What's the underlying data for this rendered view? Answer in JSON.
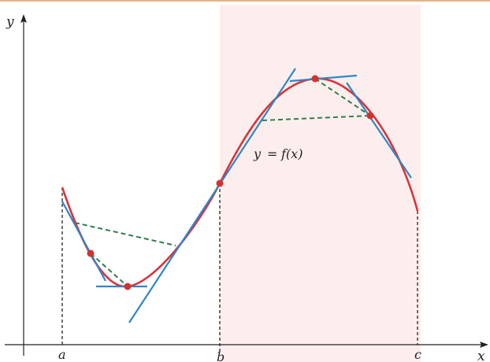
{
  "colors": {
    "top_rule": "#e0b48a",
    "highlight_band": "#fdeeee",
    "curve": "#d9343b",
    "tangent": "#2f86c6",
    "secant": "#2e7d4a",
    "point": "#d2322d",
    "axis": "#222222",
    "dashed_guide": "#222222"
  },
  "labels": {
    "y_axis": "y",
    "x_axis": "x",
    "a": "a",
    "b": "b",
    "c": "c",
    "function_lhs": "y",
    "function_eq": "=",
    "function_rhs": "f(x)"
  }
}
